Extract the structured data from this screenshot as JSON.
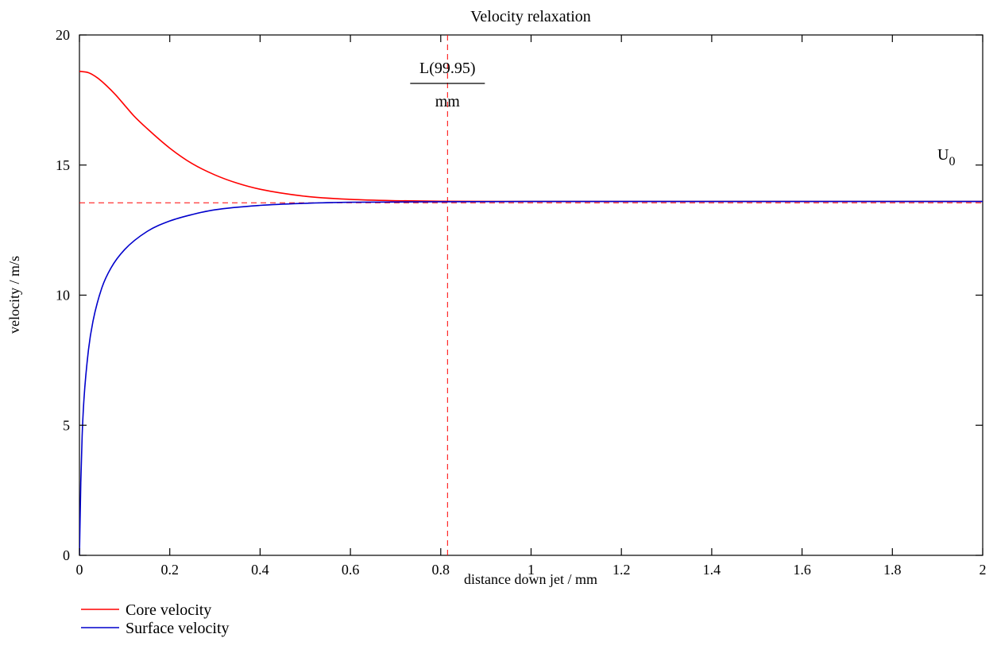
{
  "chart_data": {
    "type": "line",
    "title": "Velocity relaxation",
    "xlabel": "distance down jet / mm",
    "ylabel": "velocity / m/s",
    "xlim": [
      0,
      2
    ],
    "ylim": [
      0,
      20
    ],
    "xticks": [
      0,
      0.2,
      0.4,
      0.6,
      0.8,
      1,
      1.2,
      1.4,
      1.6,
      1.8,
      2
    ],
    "xtick_labels": [
      "0",
      "0.2",
      "0.4",
      "0.6",
      "0.8",
      "1",
      "1.2",
      "1.4",
      "1.6",
      "1.8",
      "2"
    ],
    "yticks": [
      0,
      5,
      10,
      15,
      20
    ],
    "ytick_labels": [
      "0",
      "5",
      "10",
      "15",
      "20"
    ],
    "grid": false,
    "legend_position": "bottom-left",
    "series": [
      {
        "name": "Core velocity",
        "color": "#ff0000",
        "x": [
          0,
          0.02,
          0.04,
          0.06,
          0.08,
          0.1,
          0.12,
          0.15,
          0.2,
          0.25,
          0.3,
          0.35,
          0.4,
          0.5,
          0.6,
          0.7,
          0.8,
          1.0,
          1.5,
          2.0
        ],
        "y": [
          18.6,
          18.55,
          18.35,
          18.05,
          17.7,
          17.3,
          16.9,
          16.4,
          15.65,
          15.05,
          14.62,
          14.3,
          14.07,
          13.8,
          13.68,
          13.63,
          13.61,
          13.6,
          13.6,
          13.6
        ]
      },
      {
        "name": "Surface velocity",
        "color": "#0000cc",
        "x": [
          0,
          0.003,
          0.006,
          0.01,
          0.02,
          0.03,
          0.05,
          0.07,
          0.1,
          0.15,
          0.2,
          0.25,
          0.3,
          0.4,
          0.5,
          0.6,
          0.8,
          1.0,
          1.5,
          2.0
        ],
        "y": [
          0,
          2.8,
          4.6,
          6.0,
          7.9,
          9.0,
          10.3,
          11.05,
          11.75,
          12.45,
          12.85,
          13.1,
          13.28,
          13.45,
          13.53,
          13.57,
          13.59,
          13.6,
          13.6,
          13.6
        ]
      }
    ],
    "reference_lines": [
      {
        "orientation": "horizontal",
        "value": 13.55,
        "color": "#ff0000",
        "style": "dashed",
        "label": "U",
        "label_sub": "0"
      },
      {
        "orientation": "vertical",
        "value": 0.815,
        "color": "#ff0000",
        "style": "dashed",
        "label_num": "L(99.95)",
        "label_den": "mm"
      }
    ]
  }
}
